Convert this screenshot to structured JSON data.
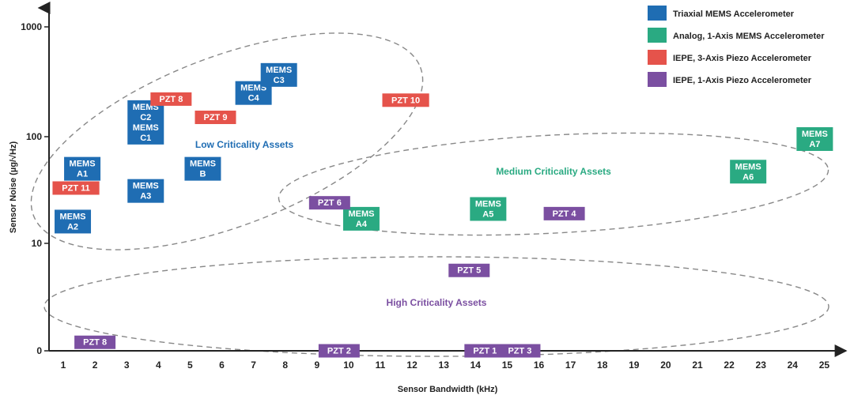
{
  "chart_data": {
    "type": "scatter",
    "xlabel": "Sensor Bandwidth (kHz)",
    "ylabel": "Sensor Noise (µg/√Hz)",
    "x_ticks": [
      "1",
      "2",
      "3",
      "4",
      "5",
      "6",
      "7",
      "8",
      "9",
      "10",
      "11",
      "12",
      "13",
      "14",
      "15",
      "16",
      "17",
      "18",
      "19",
      "20",
      "21",
      "22",
      "23",
      "24",
      "25"
    ],
    "y_ticks": [
      "0",
      "10",
      "100",
      "1000"
    ],
    "legend_position": "top-right",
    "series": [
      {
        "name": "Triaxial MEMS Accelerometer",
        "color": "#1f6db3"
      },
      {
        "name": "Analog, 1-Axis MEMS Accelerometer",
        "color": "#2aaa82"
      },
      {
        "name": "IEPE, 3-Axis Piezo Accelerometer",
        "color": "#e5534b"
      },
      {
        "name": "IEPE, 1-Axis Piezo Accelerometer",
        "color": "#7b4fa1"
      }
    ],
    "points": [
      {
        "lines": [
          "MEMS",
          "A1"
        ],
        "x": 1.6,
        "y": 50,
        "series": 0
      },
      {
        "lines": [
          "MEMS",
          "A2"
        ],
        "x": 1.3,
        "y": 16,
        "series": 0
      },
      {
        "lines": [
          "MEMS",
          "A3"
        ],
        "x": 3.6,
        "y": 31,
        "series": 0
      },
      {
        "lines": [
          "MEMS",
          "B"
        ],
        "x": 5.4,
        "y": 50,
        "series": 0
      },
      {
        "lines": [
          "MEMS",
          "C2",
          "MEMS",
          "C1"
        ],
        "x": 3.6,
        "y": 135,
        "series": 0
      },
      {
        "lines": [
          "MEMS",
          "C4"
        ],
        "x": 7.0,
        "y": 250,
        "series": 0
      },
      {
        "lines": [
          "MEMS",
          "C3"
        ],
        "x": 7.8,
        "y": 365,
        "series": 0
      },
      {
        "lines": [
          "PZT 11"
        ],
        "x": 1.4,
        "y": 33,
        "series": 2
      },
      {
        "lines": [
          "PZT 8"
        ],
        "x": 4.4,
        "y": 220,
        "series": 2
      },
      {
        "lines": [
          "PZT 9"
        ],
        "x": 5.8,
        "y": 150,
        "series": 2
      },
      {
        "lines": [
          "PZT 10"
        ],
        "x": 11.8,
        "y": 215,
        "series": 2
      },
      {
        "lines": [
          "MEMS",
          "A4"
        ],
        "x": 10.4,
        "y": 17,
        "series": 1
      },
      {
        "lines": [
          "MEMS",
          "A5"
        ],
        "x": 14.4,
        "y": 21,
        "series": 1
      },
      {
        "lines": [
          "MEMS",
          "A6"
        ],
        "x": 22.6,
        "y": 47,
        "series": 1
      },
      {
        "lines": [
          "MEMS",
          "A7"
        ],
        "x": 24.7,
        "y": 95,
        "series": 1
      },
      {
        "lines": [
          "PZT 6"
        ],
        "x": 9.4,
        "y": 24,
        "series": 3
      },
      {
        "lines": [
          "PZT 4"
        ],
        "x": 16.8,
        "y": 19,
        "series": 3
      },
      {
        "lines": [
          "PZT 5"
        ],
        "x": 13.8,
        "y": 5.6,
        "series": 3
      },
      {
        "lines": [
          "PZT 8"
        ],
        "x": 2.0,
        "y": 1.2,
        "series": 3
      },
      {
        "lines": [
          "PZT 2"
        ],
        "x": 9.7,
        "y": 0.9,
        "series": 3
      },
      {
        "lines": [
          "PZT 1"
        ],
        "x": 14.3,
        "y": 0.8,
        "series": 3
      },
      {
        "lines": [
          "PZT 3"
        ],
        "x": 15.4,
        "y": 0.8,
        "series": 3
      }
    ],
    "regions": [
      {
        "label": "Low Criticality Assets",
        "series": 0
      },
      {
        "label": "Medium Criticality Assets",
        "series": 1
      },
      {
        "label": "High Criticality Assets",
        "series": 3
      }
    ]
  }
}
